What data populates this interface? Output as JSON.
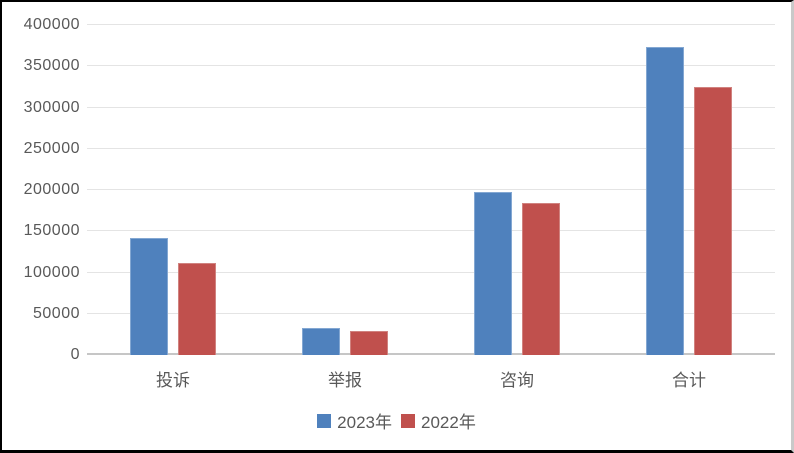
{
  "chart_data": {
    "type": "bar",
    "title": "",
    "xlabel": "",
    "ylabel": "",
    "categories": [
      "投诉",
      "举报",
      "咨询",
      "合计"
    ],
    "series": [
      {
        "name": "2023年",
        "color": "#4F81BD",
        "border_color": "#83A7D2",
        "values": [
          142000,
          33000,
          198000,
          373000
        ]
      },
      {
        "name": "2022年",
        "color": "#C0504D",
        "border_color": "#D0827F",
        "values": [
          112000,
          29000,
          184000,
          325000
        ]
      }
    ],
    "ylim": [
      0,
      400000
    ],
    "yticks": [
      0,
      50000,
      100000,
      150000,
      200000,
      250000,
      300000,
      350000,
      400000
    ],
    "ytick_labels": [
      "0",
      "50000",
      "100000",
      "150000",
      "200000",
      "250000",
      "300000",
      "350000",
      "400000"
    ],
    "grid": true,
    "legend_position": "bottom"
  },
  "colors": {
    "axis_text": "#595959",
    "gridline": "#e4e4e4",
    "axis_line": "#c6c6c6",
    "frame_border": "#000000",
    "background": "#ffffff"
  }
}
